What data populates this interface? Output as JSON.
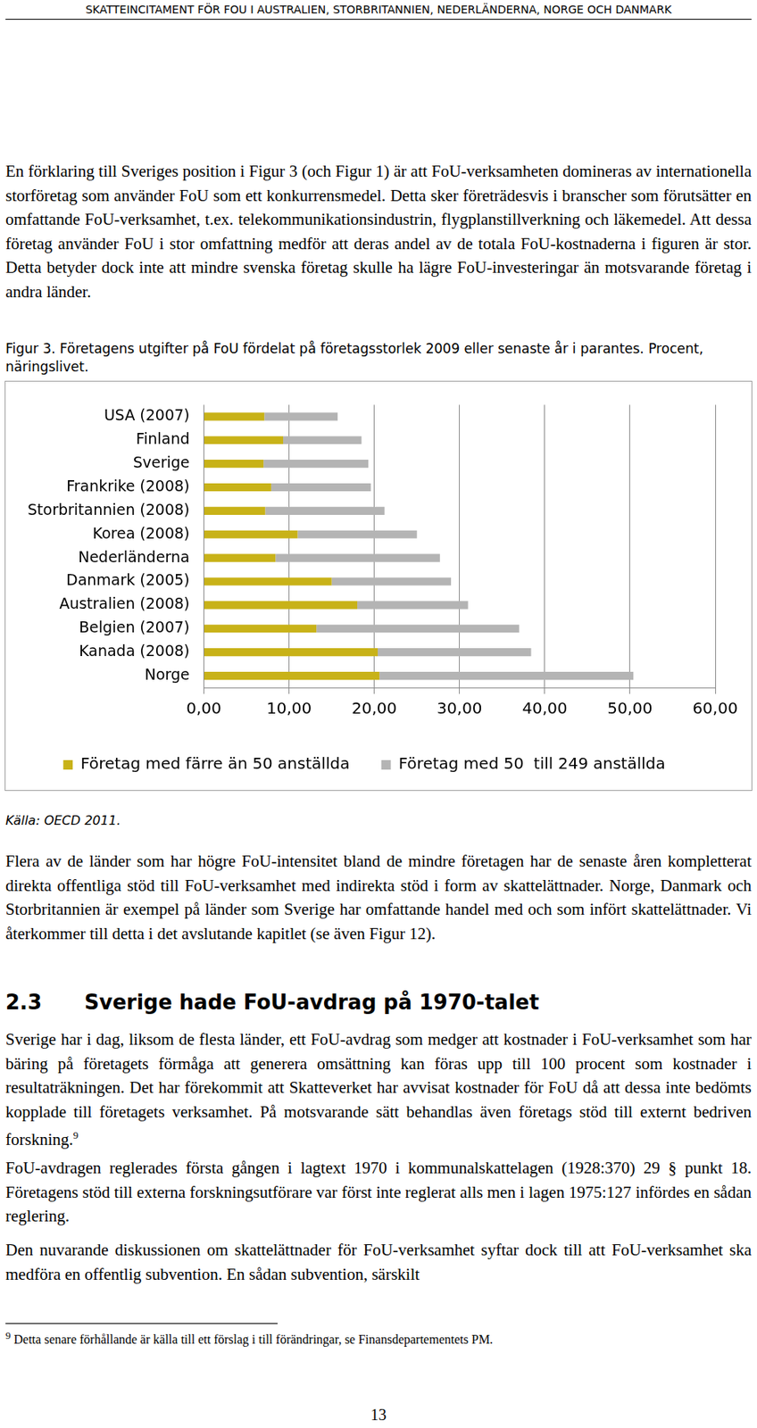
{
  "header": "SKATTEINCITAMENT FÖR FOU I AUSTRALIEN, STORBRITANNIEN, NEDERLÄNDERNA, NORGE OCH DANMARK",
  "paragraph_1": "En förklaring till Sveriges position i Figur 3 (och Figur 1) är att FoU-verksamheten domineras av internationella storföretag som använder FoU som ett konkurrensmedel. Detta sker företrädesvis i branscher som förutsätter en omfattande FoU-verksamhet, t.ex. telekommunikationsindustrin, flygplanstillverkning och läkemedel. Att dessa företag använder FoU i stor omfattning medför att deras andel av de totala FoU-kostnaderna i figuren är stor. Detta betyder dock inte att mindre svenska företag skulle ha lägre FoU-investeringar än motsvarande företag i andra länder.",
  "figure": {
    "caption": "Figur 3. Företagens utgifter på FoU fördelat på företagsstorlek 2009 eller senaste år i parantes. Procent, näringslivet.",
    "source": "Källa: OECD 2011."
  },
  "chart_data": {
    "type": "bar",
    "orientation": "horizontal",
    "stacked": true,
    "categories": [
      "USA (2007)",
      "Finland",
      "Sverige",
      "Frankrike (2008)",
      "Storbritannien (2008)",
      "Korea (2008)",
      "Nederländerna",
      "Danmark (2005)",
      "Australien (2008)",
      "Belgien (2007)",
      "Kanada (2008)",
      "Norge"
    ],
    "series": [
      {
        "name": "Företag med färre än 50 anställda",
        "color": "#c8b218",
        "values": [
          7.1,
          9.3,
          7.0,
          7.9,
          7.2,
          11.0,
          8.4,
          15.0,
          18.0,
          13.2,
          20.4,
          20.6
        ]
      },
      {
        "name": "Företag med 50  till 249 anställda",
        "color": "#b4b4b4",
        "values": [
          8.6,
          9.2,
          12.3,
          11.7,
          14.0,
          14.0,
          19.3,
          14.0,
          13.0,
          23.8,
          18.0,
          29.8
        ]
      }
    ],
    "xlim": [
      0,
      60
    ],
    "xticks": [
      {
        "value": 0,
        "label": "0,00"
      },
      {
        "value": 10,
        "label": "10,00"
      },
      {
        "value": 20,
        "label": "20,00"
      },
      {
        "value": 30,
        "label": "30,00"
      },
      {
        "value": 40,
        "label": "40,00"
      },
      {
        "value": 50,
        "label": "50,00"
      },
      {
        "value": 60,
        "label": "60,00"
      }
    ],
    "grid": true,
    "legend": "bottom"
  },
  "paragraph_2": "Flera av de länder som har högre FoU-intensitet bland de mindre företagen har de senaste åren kompletterat direkta offentliga stöd till FoU-verksamhet med indirekta stöd i form av skattelättnader. Norge, Danmark och Storbritannien är exempel på länder som Sverige har omfattande handel med och som infört skattelättnader. Vi återkommer till detta i det avslutande kapitlet (se även Figur 12).",
  "heading": {
    "number": "2.3",
    "text": "Sverige hade FoU-avdrag på 1970-talet"
  },
  "paragraph_3": "Sverige har i dag, liksom de flesta länder, ett FoU-avdrag som medger att kostnader i FoU-verksamhet som har bäring på företagets förmåga att generera omsättning kan föras upp till 100 procent som kostnader i resultaträkningen. Det har förekommit att Skatteverket har avvisat kostnader för FoU då att dessa inte bedömts kopplade till företagets verksamhet. På motsvarande sätt behandlas även företags stöd till externt bedriven forskning.",
  "paragraph_3_footnote_ref": "9",
  "paragraph_4": "FoU-avdragen reglerades första gången i lagtext 1970 i kommunalskattelagen (1928:370) 29 § punkt 18. Företagens stöd till externa forskningsutförare var först inte reglerat alls men i lagen 1975:127 infördes en sådan reglering.",
  "paragraph_5": "Den nuvarande diskussionen om skattelättnader för FoU-verksamhet syftar dock till att FoU-verksamhet ska medföra en offentlig subvention. En sådan subvention, särskilt",
  "footnote": {
    "number": "9",
    "text": "Detta senare förhållande är källa till ett förslag i till förändringar, se Finansdepartementets PM."
  },
  "page_number": "13"
}
